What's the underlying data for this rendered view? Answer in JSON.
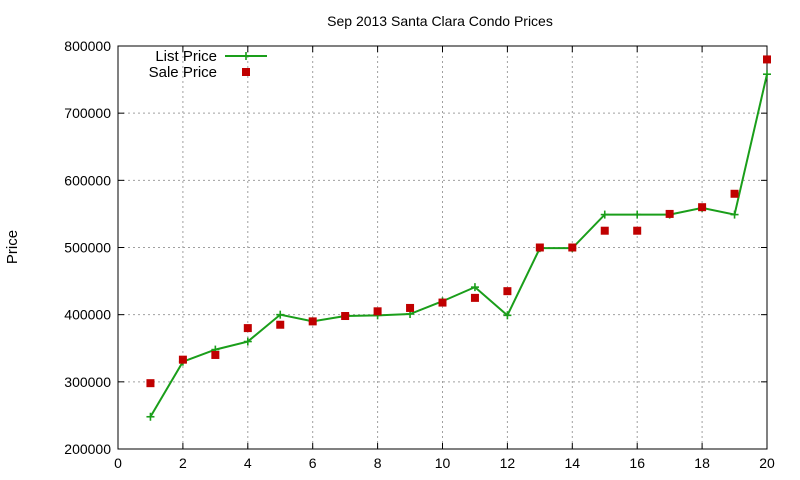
{
  "chart_data": {
    "type": "line",
    "title": "Sep 2013 Santa Clara Condo Prices",
    "xlabel": "",
    "ylabel": "Price",
    "xlim": [
      0,
      20
    ],
    "ylim": [
      200000,
      800000
    ],
    "x_ticks": [
      0,
      2,
      4,
      6,
      8,
      10,
      12,
      14,
      16,
      18,
      20
    ],
    "y_ticks": [
      200000,
      300000,
      400000,
      500000,
      600000,
      700000,
      800000
    ],
    "grid": true,
    "legend_position": "top-left",
    "series": [
      {
        "name": "List Price",
        "style": "line-plus",
        "color": "#1a9e1a",
        "x": [
          1,
          2,
          3,
          4,
          5,
          6,
          7,
          8,
          9,
          10,
          11,
          12,
          13,
          14,
          15,
          16,
          17,
          18,
          19,
          20
        ],
        "y": [
          248000,
          330000,
          348000,
          360000,
          400000,
          390000,
          398000,
          399000,
          401000,
          420000,
          441000,
          399000,
          499000,
          499000,
          549000,
          549000,
          549000,
          559000,
          549000,
          758000
        ]
      },
      {
        "name": "Sale Price",
        "style": "square",
        "color": "#c00000",
        "x": [
          1,
          2,
          3,
          4,
          5,
          6,
          7,
          8,
          9,
          10,
          11,
          12,
          13,
          14,
          15,
          16,
          17,
          18,
          19,
          20
        ],
        "y": [
          298000,
          333000,
          340000,
          380000,
          385000,
          390000,
          398000,
          405000,
          410000,
          418000,
          425000,
          435000,
          500000,
          500000,
          525000,
          525000,
          550000,
          560000,
          580000,
          780000
        ]
      }
    ]
  }
}
